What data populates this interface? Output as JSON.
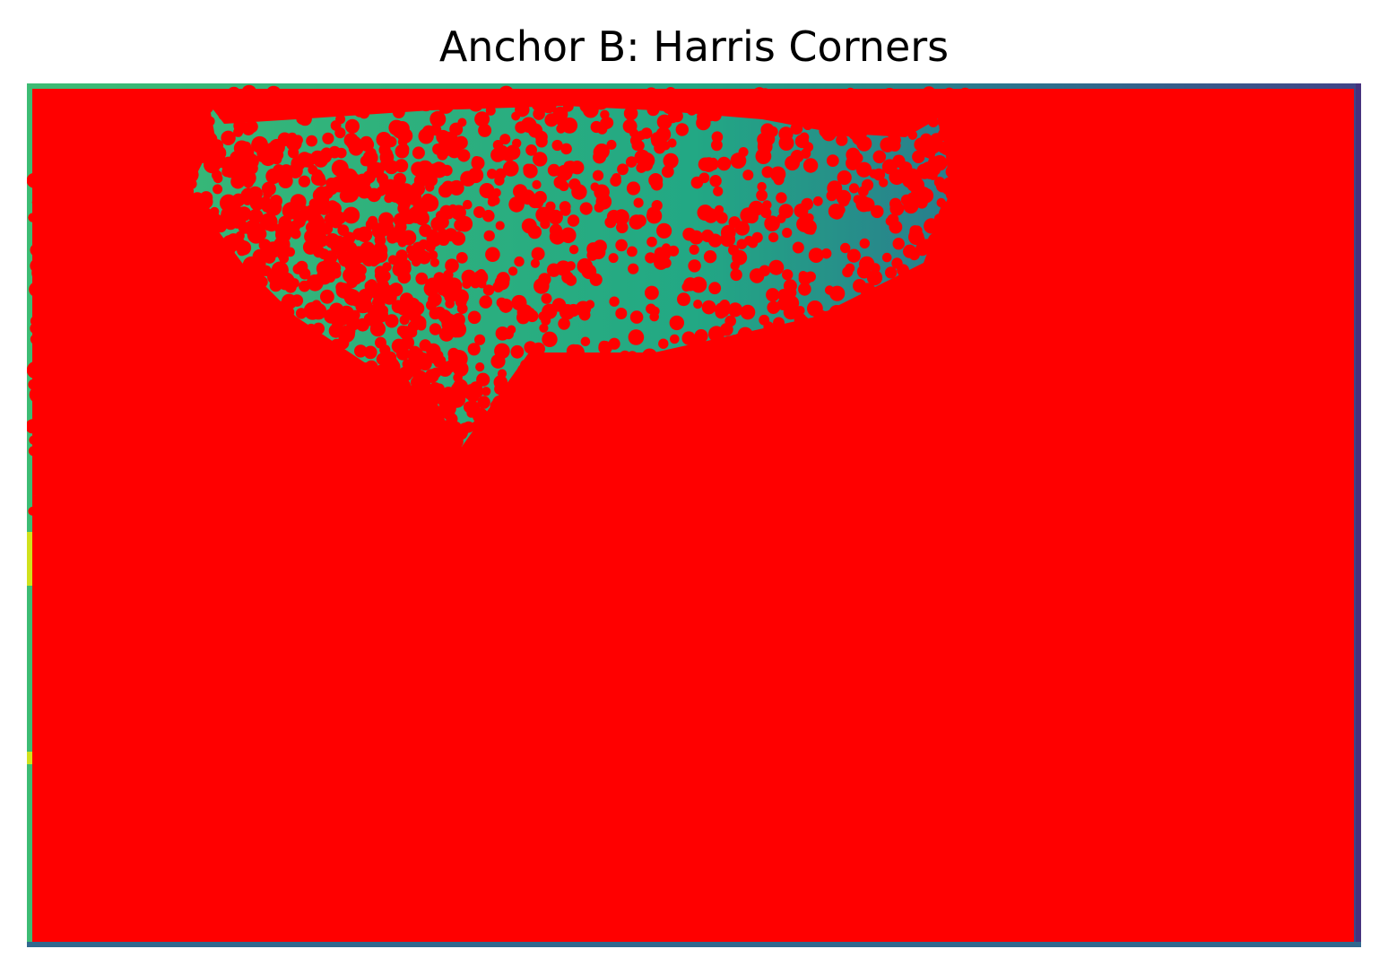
{
  "figure": {
    "title": "Anchor B: Harris Corners"
  },
  "image": {
    "description_colors": {
      "base_teal": "#22a884",
      "base_green": "#3dbc74",
      "base_yellow": "#d0e11c",
      "edge_blue": "#31688e",
      "edge_purple": "#46327e",
      "corner_marker": "#ff0000"
    }
  }
}
